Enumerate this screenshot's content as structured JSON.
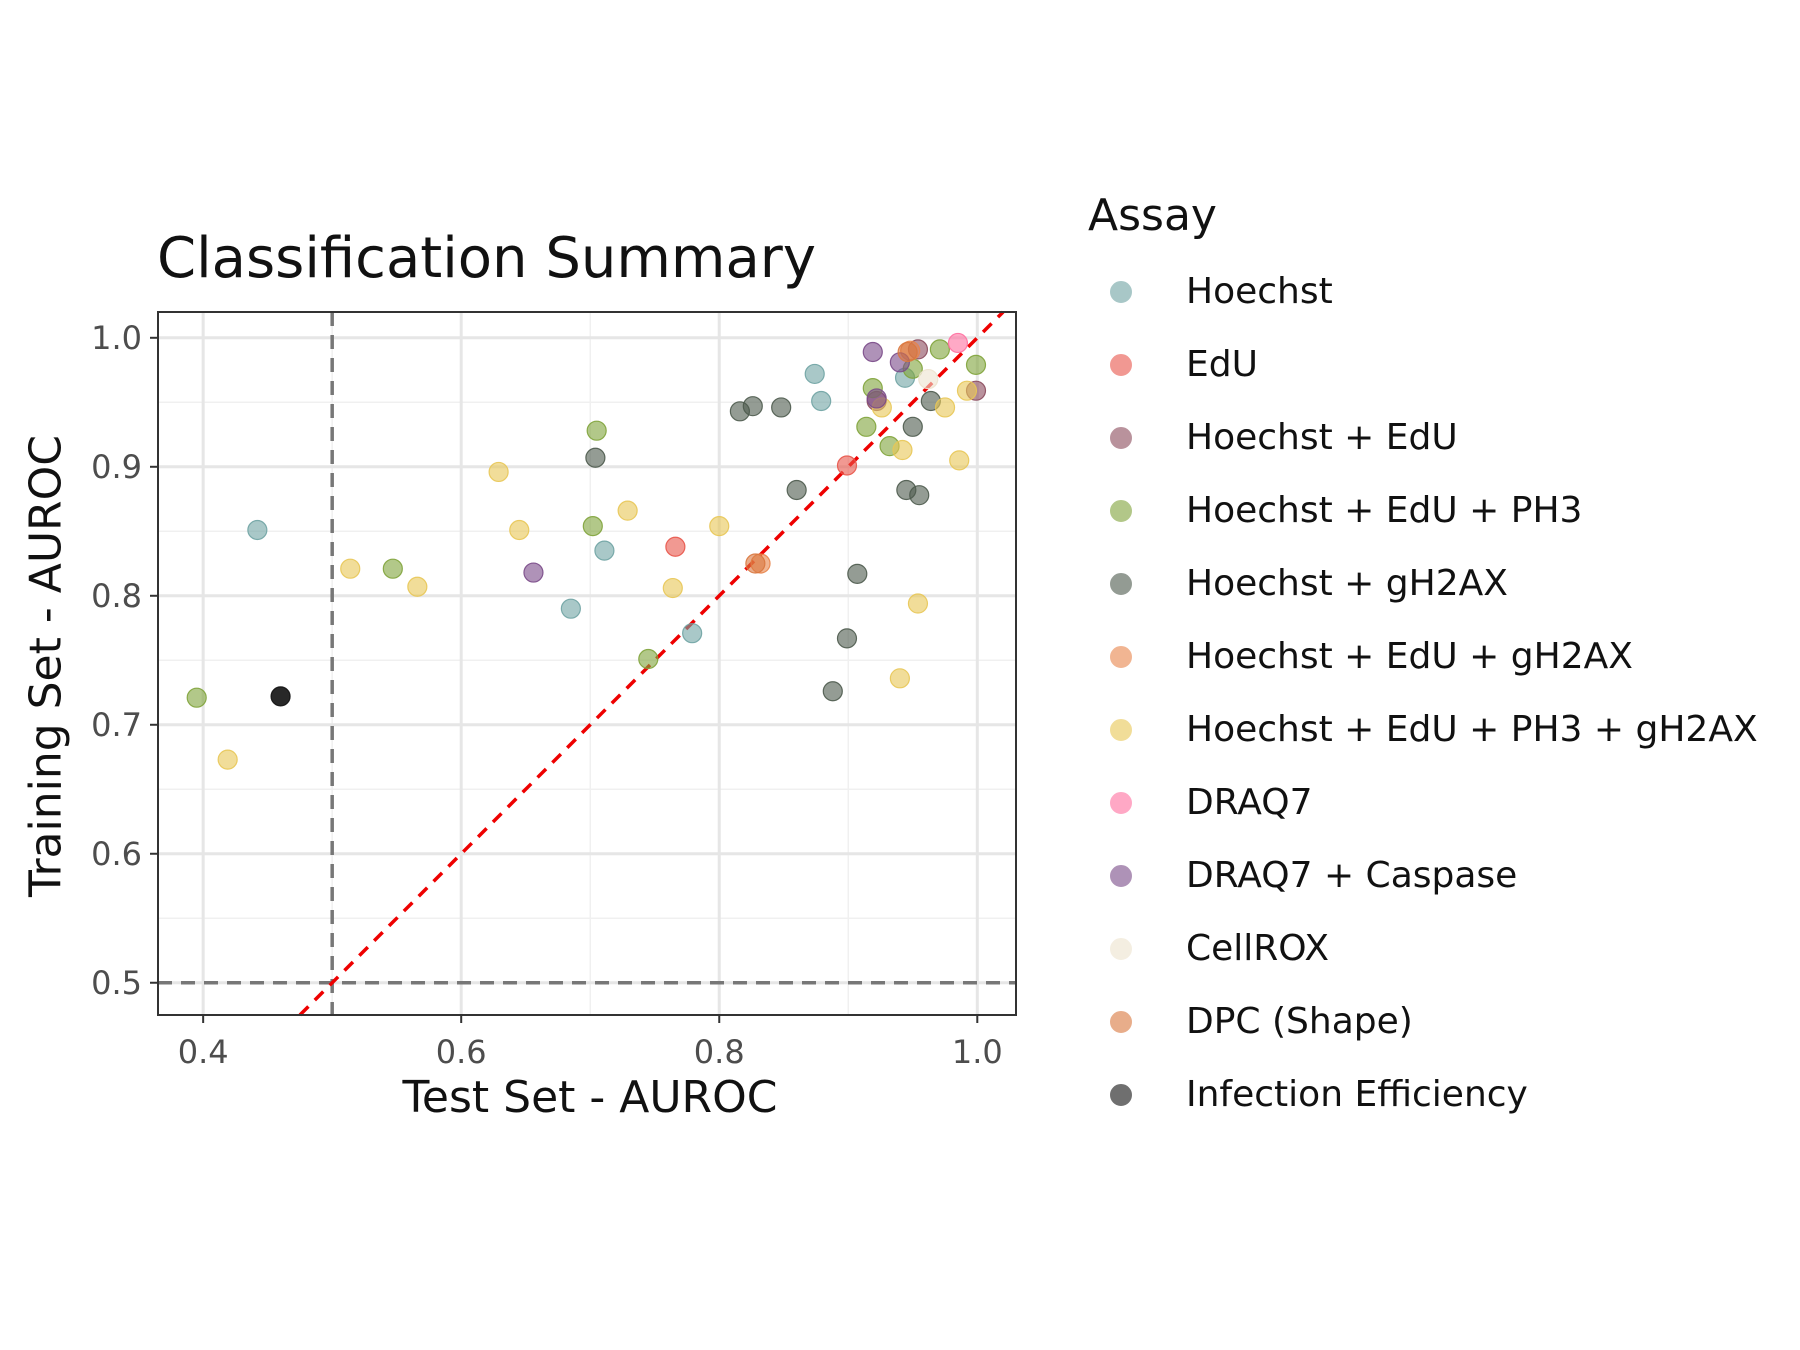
{
  "chart_data": {
    "type": "scatter",
    "title": "Classification Summary",
    "xlabel": "Test Set - AUROC",
    "ylabel": "Training Set - AUROC",
    "xlim": [
      0.365,
      1.03
    ],
    "ylim": [
      0.475,
      1.02
    ],
    "xticks": [
      0.4,
      0.6,
      0.8,
      1.0
    ],
    "xtick_labels": [
      "0.4",
      "0.6",
      "0.8",
      "1.0"
    ],
    "yticks": [
      0.5,
      0.6,
      0.7,
      0.8,
      0.9,
      1.0
    ],
    "ytick_labels": [
      "0.5",
      "0.6",
      "0.7",
      "0.8",
      "0.9",
      "1.0"
    ],
    "grid": true,
    "reference_lines": {
      "vertical": 0.5,
      "horizontal": 0.5,
      "diagonal": "y = x"
    },
    "legend_title": "Assay",
    "legend_position": "right",
    "series": [
      {
        "name": "Hoechst",
        "color": "#6FA3A3",
        "points": [
          [
            0.442,
            0.851
          ],
          [
            0.685,
            0.79
          ],
          [
            0.711,
            0.835
          ],
          [
            0.779,
            0.771
          ],
          [
            0.874,
            0.972
          ],
          [
            0.879,
            0.951
          ],
          [
            0.944,
            0.969
          ]
        ]
      },
      {
        "name": "EdU",
        "color": "#E8554A",
        "points": [
          [
            0.899,
            0.901
          ],
          [
            0.766,
            0.838
          ]
        ]
      },
      {
        "name": "Hoechst + EdU",
        "color": "#8B4A5C",
        "points": [
          [
            0.922,
            0.951
          ],
          [
            0.954,
            0.991
          ],
          [
            0.999,
            0.959
          ]
        ]
      },
      {
        "name": "Hoechst + EdU + PH3",
        "color": "#7FA33A",
        "points": [
          [
            0.395,
            0.721
          ],
          [
            0.547,
            0.821
          ],
          [
            0.702,
            0.854
          ],
          [
            0.705,
            0.928
          ],
          [
            0.745,
            0.751
          ],
          [
            0.914,
            0.931
          ],
          [
            0.919,
            0.961
          ],
          [
            0.932,
            0.916
          ],
          [
            0.95,
            0.976
          ],
          [
            0.971,
            0.991
          ],
          [
            0.999,
            0.979
          ]
        ]
      },
      {
        "name": "Hoechst + gH2AX",
        "color": "#4D5A4D",
        "points": [
          [
            0.704,
            0.907
          ],
          [
            0.816,
            0.943
          ],
          [
            0.826,
            0.947
          ],
          [
            0.848,
            0.946
          ],
          [
            0.86,
            0.882
          ],
          [
            0.888,
            0.726
          ],
          [
            0.899,
            0.767
          ],
          [
            0.907,
            0.817
          ],
          [
            0.945,
            0.882
          ],
          [
            0.95,
            0.931
          ],
          [
            0.955,
            0.878
          ],
          [
            0.964,
            0.951
          ]
        ]
      },
      {
        "name": "Hoechst + EdU + gH2AX",
        "color": "#E8844A",
        "points": [
          [
            0.832,
            0.825
          ],
          [
            0.948,
            0.99
          ]
        ]
      },
      {
        "name": "Hoechst + EdU + PH3 + gH2AX",
        "color": "#E8C755",
        "points": [
          [
            0.419,
            0.673
          ],
          [
            0.514,
            0.821
          ],
          [
            0.566,
            0.807
          ],
          [
            0.629,
            0.896
          ],
          [
            0.645,
            0.851
          ],
          [
            0.729,
            0.866
          ],
          [
            0.764,
            0.806
          ],
          [
            0.8,
            0.854
          ],
          [
            0.926,
            0.946
          ],
          [
            0.94,
            0.736
          ],
          [
            0.942,
            0.913
          ],
          [
            0.954,
            0.794
          ],
          [
            0.975,
            0.946
          ],
          [
            0.986,
            0.905
          ],
          [
            0.992,
            0.959
          ]
        ]
      },
      {
        "name": "DRAQ7",
        "color": "#FF6FA0",
        "points": [
          [
            0.985,
            0.996
          ]
        ]
      },
      {
        "name": "DRAQ7 + Caspase",
        "color": "#7A4A88",
        "points": [
          [
            0.656,
            0.818
          ],
          [
            0.919,
            0.989
          ],
          [
            0.94,
            0.981
          ],
          [
            0.922,
            0.953
          ]
        ]
      },
      {
        "name": "CellROX",
        "color": "#EDE3CE",
        "points": [
          [
            0.962,
            0.968
          ]
        ]
      },
      {
        "name": "DPC (Shape)",
        "color": "#D9773E",
        "points": [
          [
            0.828,
            0.825
          ],
          [
            0.946,
            0.989
          ]
        ]
      },
      {
        "name": "Infection Efficiency",
        "color": "#111111",
        "points": [
          [
            0.46,
            0.722
          ]
        ]
      }
    ]
  }
}
